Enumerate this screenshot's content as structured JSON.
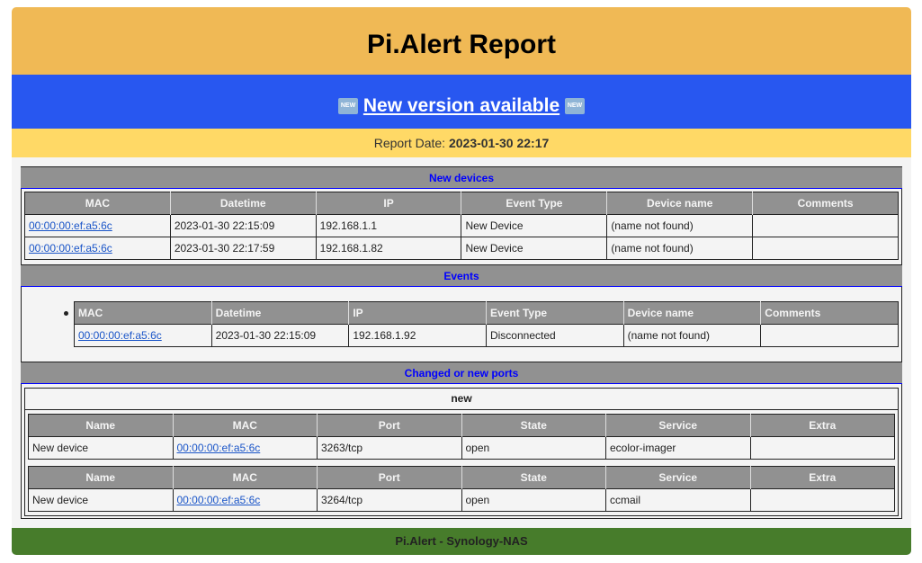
{
  "header": {
    "title": "Pi.Alert Report"
  },
  "banner": {
    "text": "New version available",
    "icon": "new-emoji-icon",
    "icon_label": "NEW"
  },
  "report_date": {
    "label": "Report Date:",
    "value": "2023-01-30 22:17"
  },
  "new_devices": {
    "title": "New devices",
    "columns": [
      "MAC",
      "Datetime",
      "IP",
      "Event Type",
      "Device name",
      "Comments"
    ],
    "rows": [
      [
        "00:00:00:ef:a5:6c",
        "2023-01-30 22:15:09",
        "192.168.1.1",
        "New Device",
        "(name not found)",
        ""
      ],
      [
        "00:00:00:ef:a5:6c",
        "2023-01-30 22:17:59",
        "192.168.1.82",
        "New Device",
        "(name not found)",
        ""
      ]
    ]
  },
  "events": {
    "title": "Events",
    "columns": [
      "MAC",
      "Datetime",
      "IP",
      "Event Type",
      "Device name",
      "Comments"
    ],
    "rows": [
      [
        "00:00:00:ef:a5:6c",
        "2023-01-30 22:15:09",
        "192.168.1.92",
        "Disconnected",
        "(name not found)",
        ""
      ]
    ]
  },
  "ports": {
    "title": "Changed or new ports",
    "group": "new",
    "columns": [
      "Name",
      "MAC",
      "Port",
      "State",
      "Service",
      "Extra"
    ],
    "tables": [
      [
        [
          "New device",
          "00:00:00:ef:a5:6c",
          "3263/tcp",
          "open",
          "ecolor-imager",
          ""
        ]
      ],
      [
        [
          "New device",
          "00:00:00:ef:a5:6c",
          "3264/tcp",
          "open",
          "ccmail",
          ""
        ]
      ]
    ]
  },
  "footer": {
    "text": "Pi.Alert - Synology-NAS"
  },
  "colors": {
    "header": "#F0B955",
    "banner": "#2857F0",
    "date_bar": "#FFD966",
    "footer": "#477C2B",
    "section_header": "#919191"
  }
}
